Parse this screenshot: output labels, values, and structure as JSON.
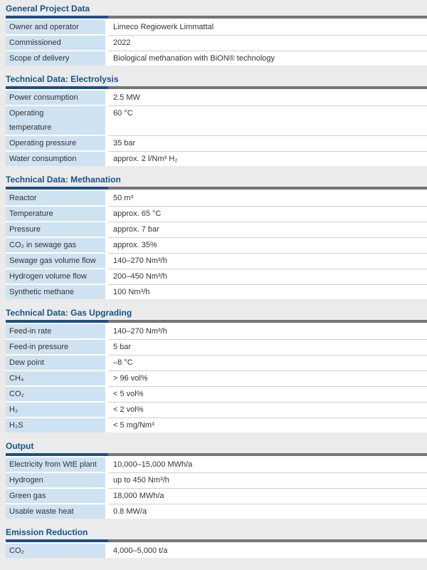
{
  "page": {
    "background": "#ebebeb"
  },
  "colors": {
    "title_text": "#14548c",
    "rule_blue": "#1d4f87",
    "rule_gray": "#757575",
    "label_cell_bg": "#cfe2f1",
    "row_bg": "#ffffff",
    "separator": "#cfcfcf",
    "body_text": "#333333"
  },
  "sections": [
    {
      "title": "General Project Data",
      "rows": [
        {
          "label": "Owner and operator",
          "value": "Limeco Regiowerk Limmattal"
        },
        {
          "label": "Commissioned",
          "value": "2022"
        },
        {
          "label": "Scope of delivery",
          "value": "Biological methanation with BiON® technology"
        }
      ]
    },
    {
      "title": "Technical Data: Electrolysis",
      "rows": [
        {
          "label": "Power consumption",
          "value": "2.5 MW"
        },
        {
          "label": "Operating\ntemperature",
          "value": "60 °C"
        },
        {
          "label": "Operating pressure",
          "value": "35 bar"
        },
        {
          "label": "Water consumption",
          "value": "approx. 2 l/Nm³ H₂"
        }
      ]
    },
    {
      "title": "Technical Data: Methanation",
      "rows": [
        {
          "label": "Reactor",
          "value": "50 m³"
        },
        {
          "label": "Temperature",
          "value": "approx. 65 °C"
        },
        {
          "label": "Pressure",
          "value": "approx. 7 bar"
        },
        {
          "label": "CO₂ in sewage gas",
          "value": "approx. 35%"
        },
        {
          "label": "Sewage gas volume flow",
          "value": "140–270 Nm³/h"
        },
        {
          "label": "Hydrogen volume flow",
          "value": "200–450 Nm³/h"
        },
        {
          "label": "Synthetic methane",
          "value": "100 Nm³/h"
        }
      ]
    },
    {
      "title": "Technical Data: Gas Upgrading",
      "rows": [
        {
          "label": "Feed-in rate",
          "value": "140–270 Nm³/h"
        },
        {
          "label": "Feed-in pressure",
          "value": "5 bar"
        },
        {
          "label": "Dew point",
          "value": "–8 °C"
        },
        {
          "label": "CH₄",
          "value": "> 96 vol%"
        },
        {
          "label": "CO₂",
          "value": "< 5 vol%"
        },
        {
          "label": "H₂",
          "value": "< 2 vol%"
        },
        {
          "label": "H₂S",
          "value": "< 5 mg/Nm³"
        }
      ]
    },
    {
      "title": "Output",
      "rows": [
        {
          "label": "Electricity from WtE plant",
          "value": "10,000–15,000 MWh/a"
        },
        {
          "label": "Hydrogen",
          "value": "up to 450 Nm³/h"
        },
        {
          "label": "Green gas",
          "value": "18,000 MWh/a"
        },
        {
          "label": "Usable waste heat",
          "value": "0.8 MW/a"
        }
      ]
    },
    {
      "title": "Emission Reduction",
      "rows": [
        {
          "label": "CO₂",
          "value": "4,000–5,000 t/a"
        }
      ]
    }
  ]
}
